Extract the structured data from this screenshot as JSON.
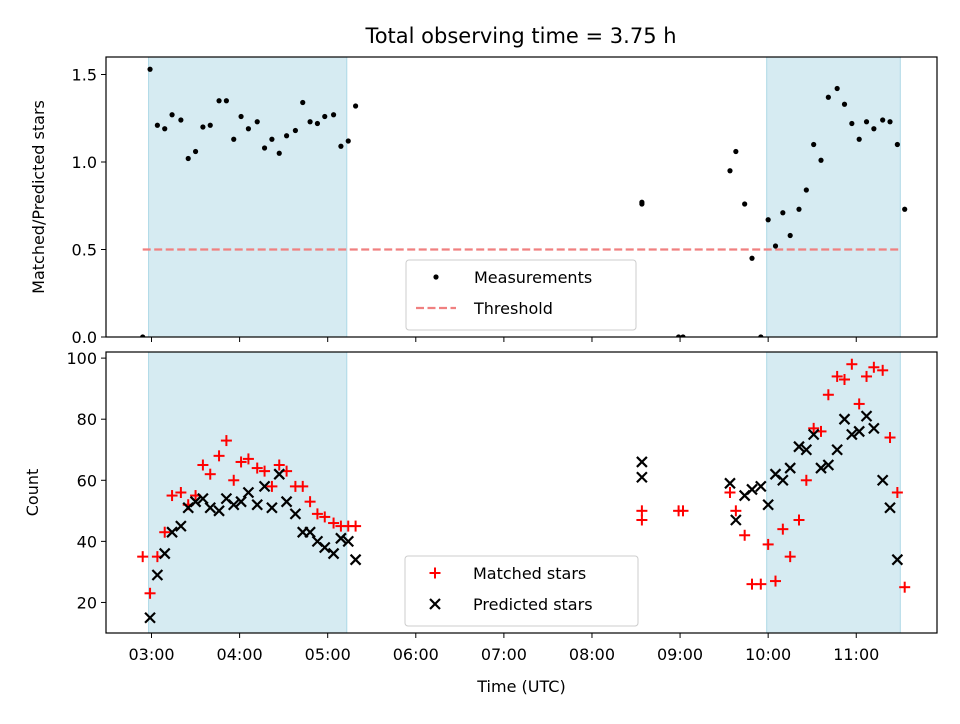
{
  "title": "Total observing time = 3.75 h",
  "colors": {
    "band": "#add8e6",
    "measurement": "#000000",
    "threshold": "#f08080",
    "matched": "#ff0000",
    "predicted": "#000000"
  },
  "chart_data": [
    {
      "type": "scatter",
      "ylabel": "Matched/Predicted stars",
      "ylim": [
        0,
        1.6
      ],
      "yticks": [
        "0.0",
        "0.5",
        "1.0",
        "1.5"
      ],
      "xlim": [
        "02:29",
        "11:55"
      ],
      "shaded_intervals": [
        [
          "02:58",
          "05:13"
        ],
        [
          "09:59",
          "11:30"
        ]
      ],
      "threshold": {
        "y": 0.5,
        "x": [
          "02:54",
          "11:30"
        ]
      },
      "legend": {
        "placement": "lower center",
        "entries": [
          "Measurements",
          "Threshold"
        ]
      },
      "series": [
        {
          "name": "Measurements",
          "points": [
            [
              "02:54",
              0.0
            ],
            [
              "02:59",
              1.53
            ],
            [
              "03:04",
              1.21
            ],
            [
              "03:09",
              1.19
            ],
            [
              "03:14",
              1.27
            ],
            [
              "03:20",
              1.24
            ],
            [
              "03:25",
              1.02
            ],
            [
              "03:30",
              1.06
            ],
            [
              "03:35",
              1.2
            ],
            [
              "03:40",
              1.21
            ],
            [
              "03:46",
              1.35
            ],
            [
              "03:51",
              1.35
            ],
            [
              "03:56",
              1.13
            ],
            [
              "04:01",
              1.26
            ],
            [
              "04:06",
              1.19
            ],
            [
              "04:12",
              1.23
            ],
            [
              "04:17",
              1.08
            ],
            [
              "04:22",
              1.13
            ],
            [
              "04:27",
              1.05
            ],
            [
              "04:32",
              1.15
            ],
            [
              "04:38",
              1.18
            ],
            [
              "04:43",
              1.34
            ],
            [
              "04:48",
              1.23
            ],
            [
              "04:53",
              1.22
            ],
            [
              "04:58",
              1.26
            ],
            [
              "05:04",
              1.27
            ],
            [
              "05:09",
              1.09
            ],
            [
              "05:14",
              1.12
            ],
            [
              "05:19",
              1.32
            ],
            [
              "08:34",
              0.76
            ],
            [
              "08:34",
              0.77
            ],
            [
              "08:59",
              0.0
            ],
            [
              "09:02",
              0.0
            ],
            [
              "09:34",
              0.95
            ],
            [
              "09:38",
              1.06
            ],
            [
              "09:44",
              0.76
            ],
            [
              "09:49",
              0.45
            ],
            [
              "09:55",
              0.0
            ],
            [
              "10:00",
              0.67
            ],
            [
              "10:05",
              0.52
            ],
            [
              "10:10",
              0.71
            ],
            [
              "10:15",
              0.58
            ],
            [
              "10:21",
              0.73
            ],
            [
              "10:26",
              0.84
            ],
            [
              "10:31",
              1.1
            ],
            [
              "10:36",
              1.01
            ],
            [
              "10:41",
              1.37
            ],
            [
              "10:47",
              1.42
            ],
            [
              "10:52",
              1.33
            ],
            [
              "10:57",
              1.22
            ],
            [
              "11:02",
              1.13
            ],
            [
              "11:07",
              1.23
            ],
            [
              "11:12",
              1.19
            ],
            [
              "11:18",
              1.24
            ],
            [
              "11:23",
              1.23
            ],
            [
              "11:28",
              1.1
            ],
            [
              "11:33",
              0.73
            ]
          ]
        }
      ]
    },
    {
      "type": "scatter",
      "ylabel": "Count",
      "xlabel": "Time (UTC)",
      "ylim": [
        10,
        102
      ],
      "yticks": [
        "20",
        "40",
        "60",
        "80",
        "100"
      ],
      "xlim": [
        "02:29",
        "11:55"
      ],
      "xticks": [
        "03:00",
        "04:00",
        "05:00",
        "06:00",
        "07:00",
        "08:00",
        "09:00",
        "10:00",
        "11:00"
      ],
      "shaded_intervals": [
        [
          "02:58",
          "05:13"
        ],
        [
          "09:59",
          "11:30"
        ]
      ],
      "legend": {
        "placement": "lower center",
        "entries": [
          "Matched stars",
          "Predicted stars"
        ]
      },
      "series": [
        {
          "name": "Matched stars",
          "marker": "plus",
          "points": [
            [
              "02:54",
              35
            ],
            [
              "02:59",
              23
            ],
            [
              "03:04",
              35
            ],
            [
              "03:09",
              43
            ],
            [
              "03:14",
              55
            ],
            [
              "03:20",
              56
            ],
            [
              "03:25",
              52
            ],
            [
              "03:30",
              55
            ],
            [
              "03:35",
              65
            ],
            [
              "03:40",
              62
            ],
            [
              "03:46",
              68
            ],
            [
              "03:51",
              73
            ],
            [
              "03:56",
              60
            ],
            [
              "04:01",
              66
            ],
            [
              "04:06",
              67
            ],
            [
              "04:12",
              64
            ],
            [
              "04:17",
              63
            ],
            [
              "04:22",
              58
            ],
            [
              "04:27",
              65
            ],
            [
              "04:32",
              63
            ],
            [
              "04:38",
              58
            ],
            [
              "04:43",
              58
            ],
            [
              "04:48",
              53
            ],
            [
              "04:53",
              49
            ],
            [
              "04:58",
              48
            ],
            [
              "05:04",
              46
            ],
            [
              "05:09",
              45
            ],
            [
              "05:14",
              45
            ],
            [
              "05:19",
              45
            ],
            [
              "08:34",
              50
            ],
            [
              "08:34",
              47
            ],
            [
              "08:59",
              50
            ],
            [
              "09:02",
              50
            ],
            [
              "09:34",
              56
            ],
            [
              "09:38",
              50
            ],
            [
              "09:44",
              42
            ],
            [
              "09:49",
              26
            ],
            [
              "09:55",
              26
            ],
            [
              "10:00",
              39
            ],
            [
              "10:05",
              27
            ],
            [
              "10:10",
              44
            ],
            [
              "10:15",
              35
            ],
            [
              "10:21",
              47
            ],
            [
              "10:26",
              60
            ],
            [
              "10:31",
              77
            ],
            [
              "10:36",
              76
            ],
            [
              "10:41",
              88
            ],
            [
              "10:47",
              94
            ],
            [
              "10:52",
              93
            ],
            [
              "10:57",
              98
            ],
            [
              "11:02",
              85
            ],
            [
              "11:07",
              94
            ],
            [
              "11:12",
              97
            ],
            [
              "11:18",
              96
            ],
            [
              "11:23",
              74
            ],
            [
              "11:28",
              56
            ],
            [
              "11:33",
              25
            ]
          ]
        },
        {
          "name": "Predicted stars",
          "marker": "x",
          "points": [
            [
              "02:59",
              15
            ],
            [
              "03:04",
              29
            ],
            [
              "03:09",
              36
            ],
            [
              "03:14",
              43
            ],
            [
              "03:20",
              45
            ],
            [
              "03:25",
              51
            ],
            [
              "03:30",
              53
            ],
            [
              "03:35",
              54
            ],
            [
              "03:40",
              51
            ],
            [
              "03:46",
              50
            ],
            [
              "03:51",
              54
            ],
            [
              "03:56",
              52
            ],
            [
              "04:01",
              53
            ],
            [
              "04:06",
              56
            ],
            [
              "04:12",
              52
            ],
            [
              "04:17",
              58
            ],
            [
              "04:22",
              51
            ],
            [
              "04:27",
              62
            ],
            [
              "04:32",
              53
            ],
            [
              "04:38",
              49
            ],
            [
              "04:43",
              43
            ],
            [
              "04:48",
              43
            ],
            [
              "04:53",
              40
            ],
            [
              "04:58",
              38
            ],
            [
              "05:04",
              36
            ],
            [
              "05:09",
              41
            ],
            [
              "05:14",
              40
            ],
            [
              "05:19",
              34
            ],
            [
              "08:34",
              66
            ],
            [
              "08:34",
              61
            ],
            [
              "09:34",
              59
            ],
            [
              "09:38",
              47
            ],
            [
              "09:44",
              55
            ],
            [
              "09:49",
              57
            ],
            [
              "09:55",
              58
            ],
            [
              "10:00",
              52
            ],
            [
              "10:05",
              62
            ],
            [
              "10:10",
              60
            ],
            [
              "10:15",
              64
            ],
            [
              "10:21",
              71
            ],
            [
              "10:26",
              70
            ],
            [
              "10:31",
              75
            ],
            [
              "10:36",
              64
            ],
            [
              "10:41",
              65
            ],
            [
              "10:47",
              70
            ],
            [
              "10:52",
              80
            ],
            [
              "10:57",
              75
            ],
            [
              "11:02",
              76
            ],
            [
              "11:07",
              81
            ],
            [
              "11:12",
              77
            ],
            [
              "11:18",
              60
            ],
            [
              "11:23",
              51
            ],
            [
              "11:28",
              34
            ]
          ]
        }
      ]
    }
  ]
}
